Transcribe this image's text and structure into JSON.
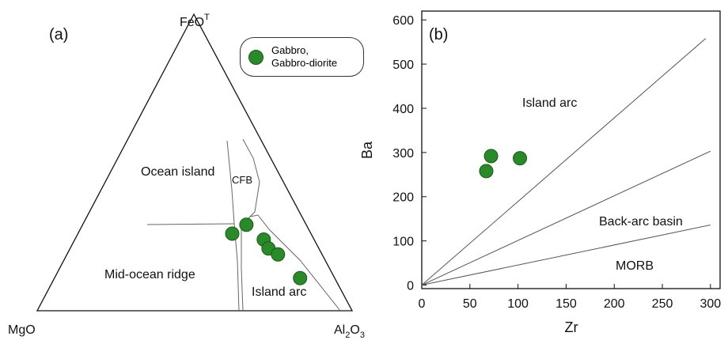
{
  "chart_data": [
    {
      "type": "ternary",
      "panel_label": "(a)",
      "apex_labels": {
        "top": [
          "FeO",
          "T"
        ],
        "left": [
          "MgO"
        ],
        "right": [
          "Al",
          "2",
          "O",
          "3"
        ]
      },
      "field_labels": [
        "Ocean island",
        "CFB",
        "Mid-ocean ridge",
        "Island arc"
      ],
      "series": [
        {
          "name": "Gabbro, Gabbro-diorite",
          "color": "#2a8a2a",
          "values": [
            [
              26,
              25,
              49
            ],
            [
              29,
              19,
              52
            ],
            [
              24,
              16,
              60
            ],
            [
              21,
              16,
              63
            ],
            [
              19,
              14,
              67
            ],
            [
              11,
              11,
              78
            ]
          ]
        }
      ]
    },
    {
      "type": "scatter",
      "panel_label": "(b)",
      "x_label": "Zr",
      "y_label": "Ba",
      "xlim": [
        0,
        310
      ],
      "ylim": [
        -8,
        620
      ],
      "xticks": [
        0,
        50,
        100,
        150,
        200,
        250,
        300
      ],
      "yticks": [
        0,
        100,
        200,
        300,
        400,
        500,
        600
      ],
      "series": [
        {
          "color": "#2a8a2a",
          "x": [
            67,
            72,
            102
          ],
          "y": [
            258,
            292,
            287
          ]
        }
      ],
      "lines": [
        {
          "x": [
            0,
            295
          ],
          "y": [
            0,
            558
          ]
        },
        {
          "x": [
            0,
            300
          ],
          "y": [
            0,
            303
          ]
        },
        {
          "x": [
            0,
            300
          ],
          "y": [
            0,
            136
          ]
        }
      ],
      "field_labels": [
        "Island arc",
        "Back-arc basin",
        "MORB"
      ]
    }
  ]
}
